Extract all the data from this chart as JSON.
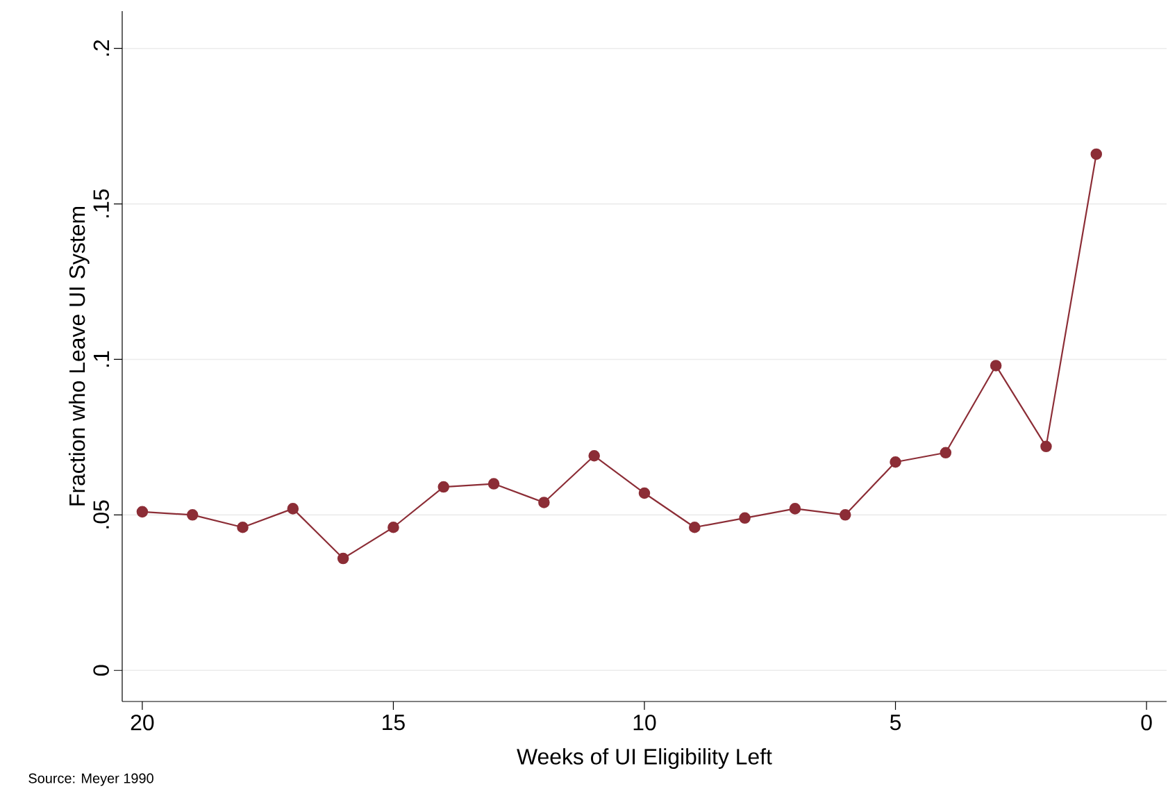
{
  "chart_data": {
    "type": "line",
    "xlabel": "Weeks of UI Eligibility Left",
    "ylabel": "Fraction who Leave UI System",
    "x": [
      20,
      19,
      18,
      17,
      16,
      15,
      14,
      13,
      12,
      11,
      10,
      9,
      8,
      7,
      6,
      5,
      4,
      3,
      2,
      1
    ],
    "series": [
      {
        "color": "#8c2d36",
        "values": [
          0.051,
          0.05,
          0.046,
          0.052,
          0.036,
          0.046,
          0.059,
          0.06,
          0.054,
          0.069,
          0.057,
          0.046,
          0.049,
          0.052,
          0.05,
          0.067,
          0.07,
          0.098,
          0.072,
          0.166
        ]
      }
    ],
    "xlim": [
      20.4,
      -0.4
    ],
    "ylim": [
      -0.01,
      0.212
    ],
    "xticks": [
      20,
      15,
      10,
      5,
      0
    ],
    "yticks": [
      {
        "value": 0,
        "label": "0"
      },
      {
        "value": 0.05,
        "label": ".05"
      },
      {
        "value": 0.1,
        "label": ".1"
      },
      {
        "value": 0.15,
        "label": ".15"
      },
      {
        "value": 0.2,
        "label": ".2"
      }
    ],
    "grid": "y",
    "marker": "circle",
    "line_style": "solid",
    "annotations": [
      "Source: Meyer 1990"
    ]
  }
}
